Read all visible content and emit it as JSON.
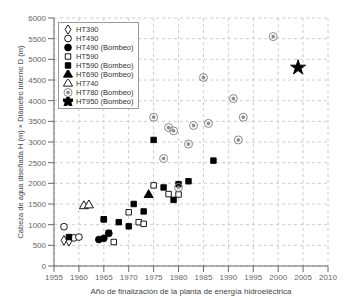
{
  "chart_data": {
    "type": "scatter",
    "title": "",
    "xlabel": "Año de finalización de la planta de energía hidroeléctrica",
    "ylabel": "Cabeza de agua diseñada H (m) × Diámetro interno D (m)",
    "xlim": [
      1955,
      2010
    ],
    "ylim": [
      0,
      6000
    ],
    "xticks": [
      1955,
      1960,
      1965,
      1970,
      1975,
      1980,
      1985,
      1990,
      1995,
      2000,
      2005,
      2010
    ],
    "yticks": [
      0,
      500,
      1000,
      1500,
      2000,
      2500,
      3000,
      3500,
      4000,
      4500,
      5000,
      5500,
      6000
    ],
    "grid": true,
    "legend": "upper left",
    "series": [
      {
        "name": "HT390",
        "marker": "diamond",
        "color": "white",
        "x": [
          1957,
          1958
        ],
        "values": [
          620,
          600
        ]
      },
      {
        "name": "HT490",
        "marker": "circle",
        "color": "white",
        "x": [
          1957,
          1959,
          1960
        ],
        "values": [
          950,
          680,
          700
        ]
      },
      {
        "name": "HT490 (Bombeo)",
        "marker": "circle",
        "color": "black",
        "x": [
          1964,
          1965,
          1966
        ],
        "values": [
          640,
          670,
          790
        ]
      },
      {
        "name": "HT590",
        "marker": "square",
        "color": "white",
        "x": [
          1965,
          1967,
          1970,
          1972,
          1973,
          1975,
          1978,
          1980
        ],
        "values": [
          1130,
          580,
          1300,
          1060,
          1020,
          1950,
          1740,
          1730
        ]
      },
      {
        "name": "HT590 (Bombeo)",
        "marker": "square",
        "color": "black",
        "x": [
          1958,
          1965,
          1966,
          1968,
          1970,
          1971,
          1973,
          1975,
          1977,
          1979,
          1980,
          1982,
          1987
        ],
        "values": [
          700,
          1130,
          800,
          1060,
          960,
          1500,
          1320,
          3050,
          1900,
          1600,
          1980,
          2050,
          2550
        ]
      },
      {
        "name": "HT690 (Bombeo)",
        "marker": "triangle",
        "color": "black",
        "x": [
          1974
        ],
        "values": [
          1720
        ]
      },
      {
        "name": "HT740",
        "marker": "triangle",
        "color": "white",
        "x": [
          1961,
          1962
        ],
        "values": [
          1450,
          1470
        ]
      },
      {
        "name": "HT780 (Bombeo)",
        "marker": "target",
        "color": "#888888",
        "x": [
          1975,
          1977,
          1978,
          1979,
          1980,
          1982,
          1983,
          1985,
          1986,
          1991,
          1992,
          1993,
          1999
        ],
        "values": [
          3600,
          2600,
          3350,
          3270,
          1900,
          2950,
          3400,
          4560,
          3450,
          4050,
          3050,
          3600,
          5550
        ]
      },
      {
        "name": "HT950 (Bombeo)",
        "marker": "star",
        "color": "black",
        "x": [
          2004
        ],
        "values": [
          4800
        ]
      }
    ]
  }
}
